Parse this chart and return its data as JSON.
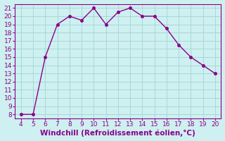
{
  "x": [
    4,
    5,
    6,
    7,
    8,
    9,
    10,
    11,
    12,
    13,
    14,
    15,
    16,
    17,
    18,
    19,
    20
  ],
  "y": [
    8,
    8,
    15,
    19,
    20,
    19.5,
    21,
    19,
    20.5,
    21,
    20,
    20,
    18.5,
    16.5,
    15,
    14,
    13
  ],
  "line_color": "#8B008B",
  "marker_color": "#8B008B",
  "bg_color": "#cef0f0",
  "grid_color": "#a8d8d8",
  "xlabel": "Windchill (Refroidissement éolien,°C)",
  "xlim": [
    3.5,
    20.5
  ],
  "ylim": [
    7.5,
    21.5
  ],
  "xticks": [
    4,
    5,
    6,
    7,
    8,
    9,
    10,
    11,
    12,
    13,
    14,
    15,
    16,
    17,
    18,
    19,
    20
  ],
  "yticks": [
    8,
    9,
    10,
    11,
    12,
    13,
    14,
    15,
    16,
    17,
    18,
    19,
    20,
    21
  ],
  "tick_color": "#8B008B",
  "xlabel_color": "#8B008B",
  "xlabel_fontsize": 7.5,
  "ytick_fontsize": 6.5,
  "xtick_fontsize": 6.5,
  "axis_color": "#8B008B",
  "linewidth": 1.0,
  "markersize": 3.0
}
